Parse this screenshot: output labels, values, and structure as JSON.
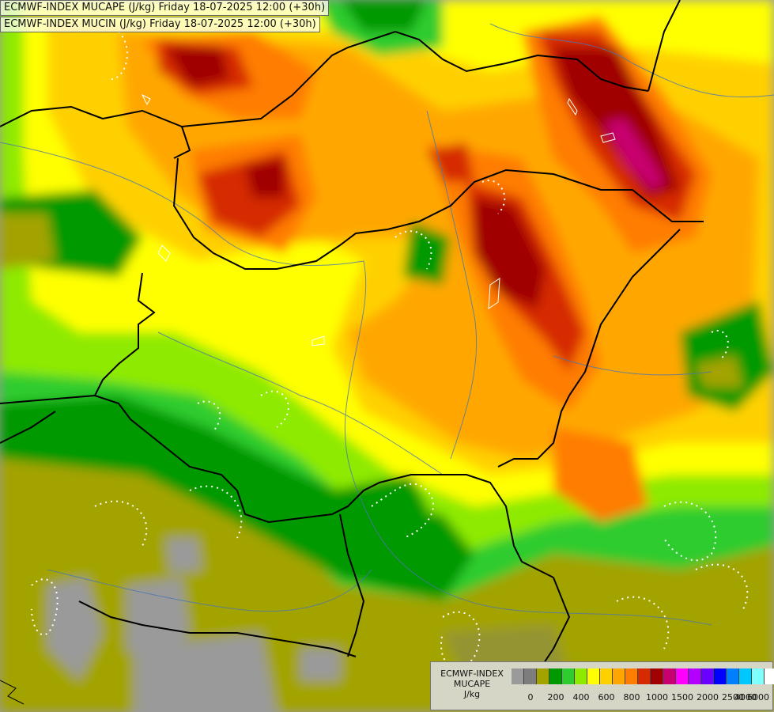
{
  "header": {
    "line1": "ECMWF-INDEX MUCAPE (J/kg) Friday 18-07-2025 12:00 (+30h)",
    "line2": "ECMWF-INDEX MUCIN (J/kg) Friday 18-07-2025 12:00 (+30h)"
  },
  "legend": {
    "line1": "ECMWF-INDEX",
    "line2": "MUCAPE",
    "line3": "J/kg",
    "colors": [
      "#9a9a9a",
      "#7d7d7d",
      "#a3a300",
      "#009900",
      "#2fcc2f",
      "#8eea00",
      "#ffff00",
      "#ffd000",
      "#ffa700",
      "#ff7d00",
      "#d62a00",
      "#a00000",
      "#c80070",
      "#ff00ff",
      "#b400ff",
      "#6a00ff",
      "#0000ff",
      "#0080ff",
      "#00c8ff",
      "#7fffff",
      "#ffffff"
    ],
    "ticks": [
      "0",
      "200",
      "400",
      "600",
      "800",
      "1000",
      "1500",
      "2000",
      "2500",
      "4000",
      "6000"
    ]
  },
  "map_layers": {
    "field": "MUCAPE",
    "contours": "MUCIN",
    "region": "Hungary and surrounding Central Europe"
  }
}
